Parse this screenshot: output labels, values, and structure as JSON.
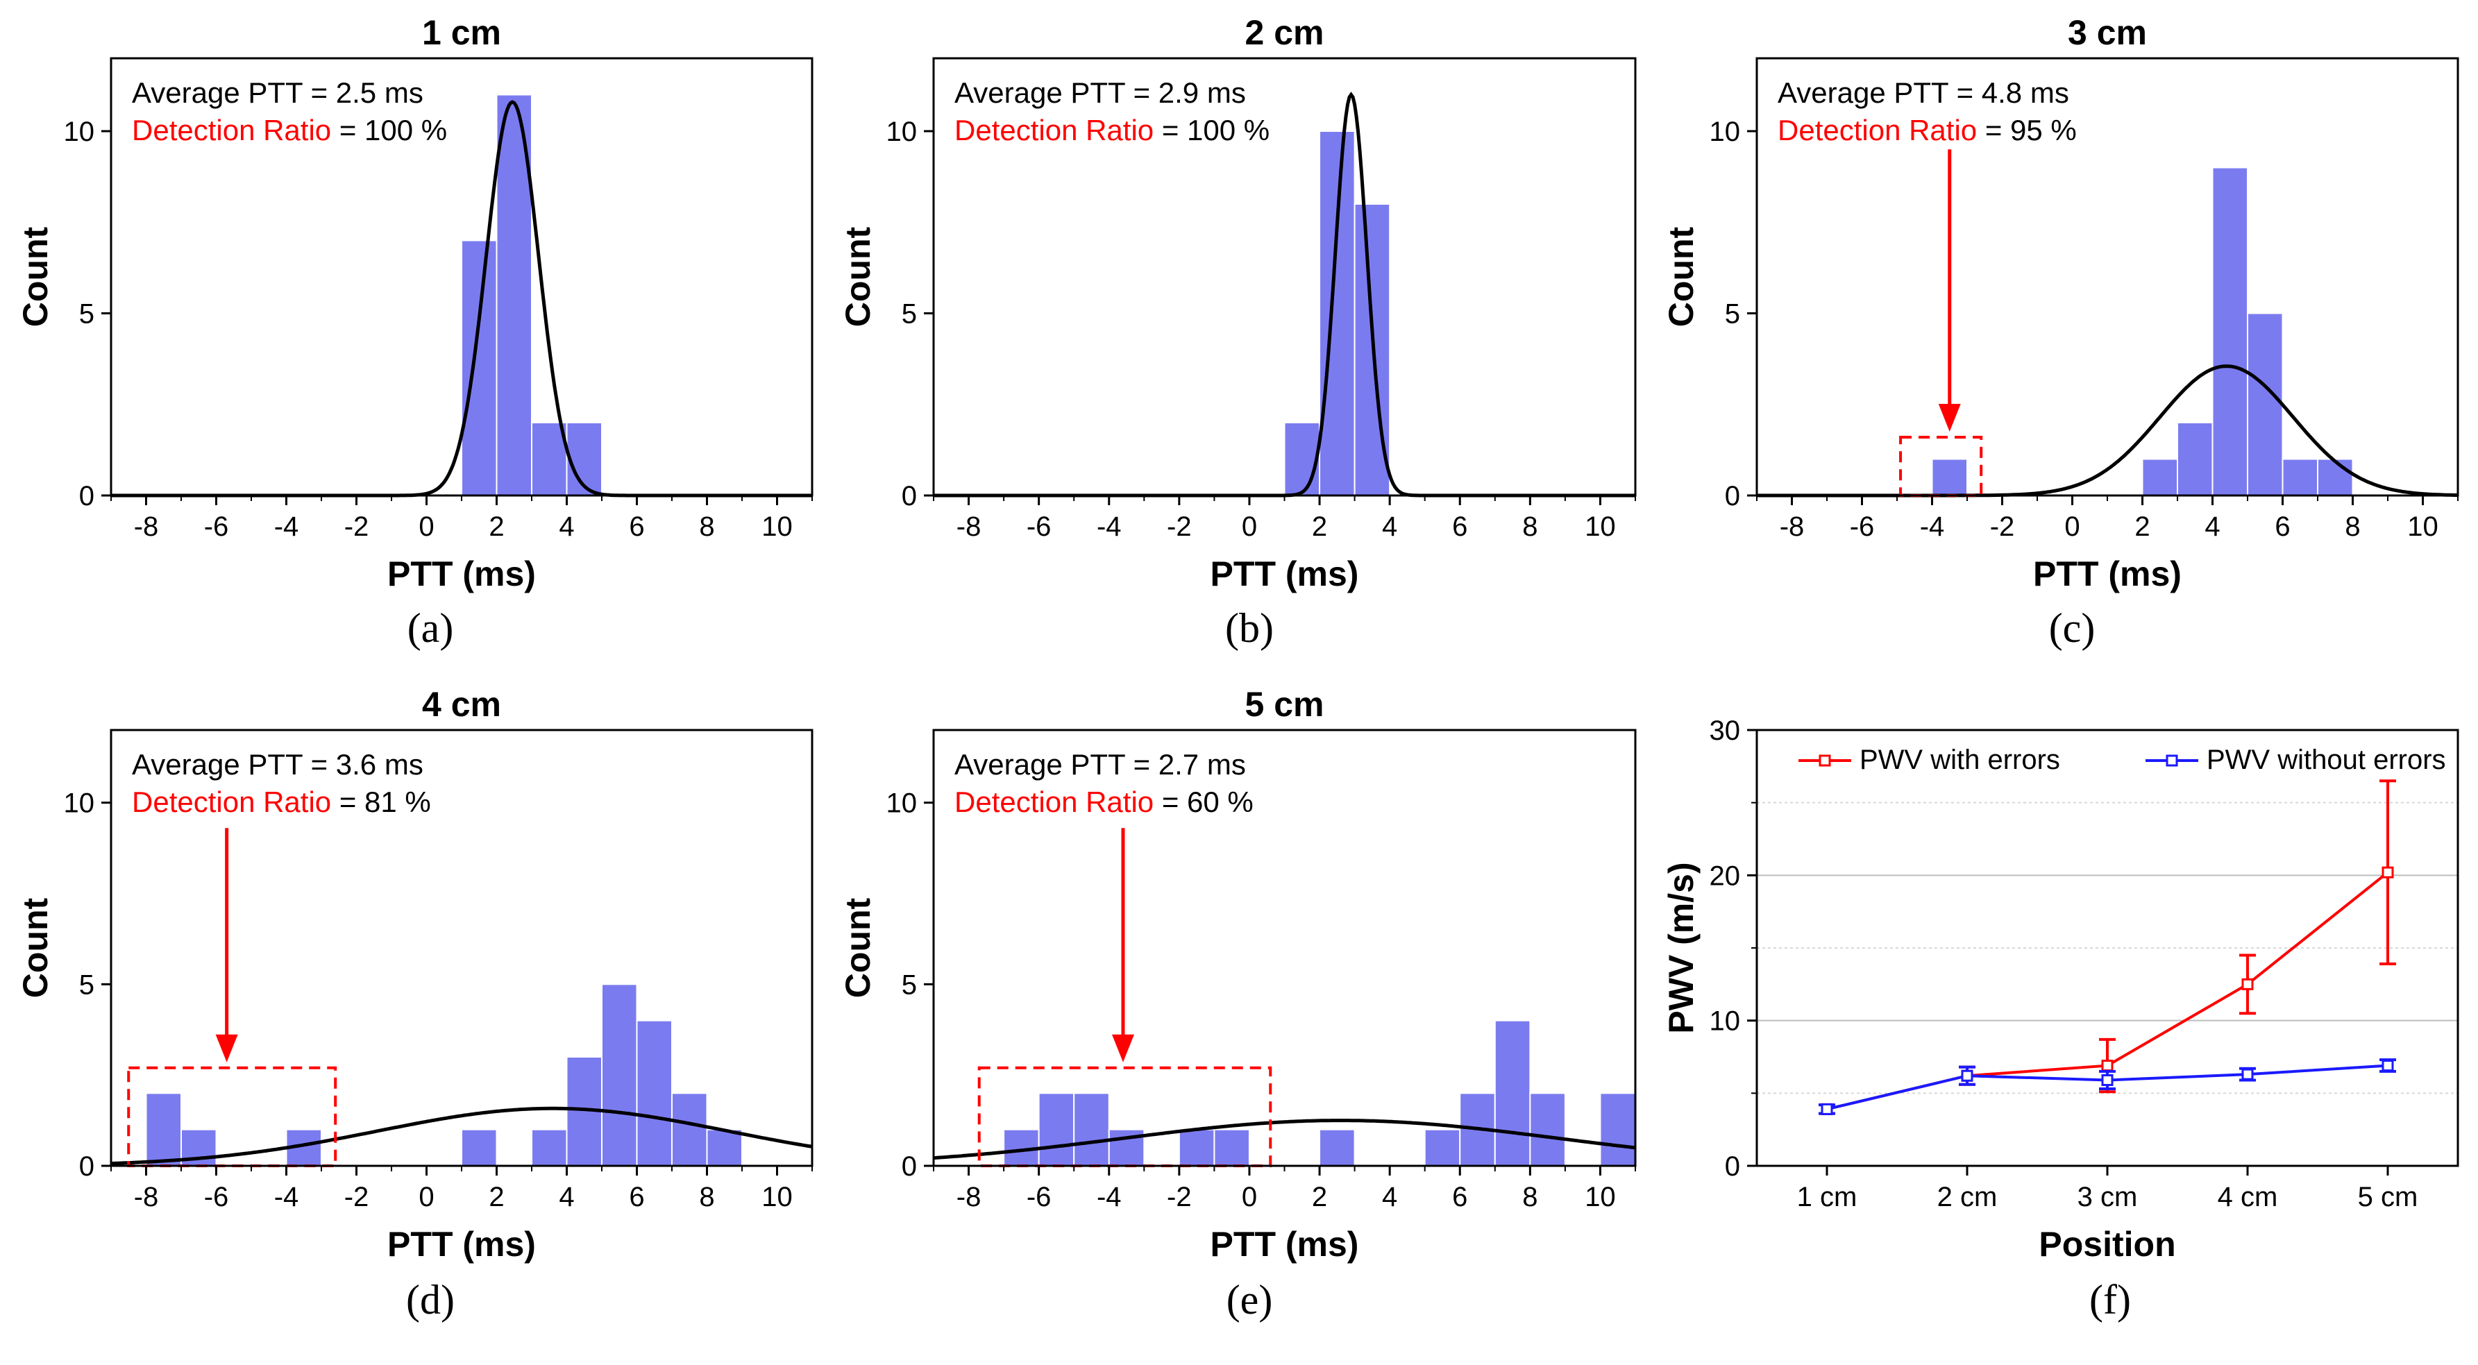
{
  "figure": {
    "colors": {
      "bar": "#7b7bf0",
      "bar_edge": "#ffffff",
      "fit": "#000000",
      "highlight": "#ff0000",
      "series_red": "#ff0000",
      "series_blue": "#1a1aff"
    }
  },
  "chart_data": [
    {
      "type": "bar",
      "panel": "(a)",
      "title": "1 cm",
      "xlabel": "PTT (ms)",
      "ylabel": "Count",
      "xlim": [
        -9,
        11
      ],
      "ylim": [
        0,
        12
      ],
      "xticks": [
        "-8",
        "-6",
        "-4",
        "-2",
        "0",
        "2",
        "4",
        "6",
        "8",
        "10"
      ],
      "yticks": [
        "0",
        "5",
        "10"
      ],
      "bin_width": 1,
      "bins": [
        {
          "x0": 1,
          "count": 7
        },
        {
          "x0": 2,
          "count": 11
        },
        {
          "x0": 3,
          "count": 2
        },
        {
          "x0": 4,
          "count": 2
        }
      ],
      "fit": {
        "mean": 2.45,
        "sd": 0.75,
        "peak": 10.8
      },
      "annotations": {
        "avg_label": "Average PTT = 2.5 ms",
        "ratio_label": "Detection Ratio",
        "ratio_value": " = 100 %"
      },
      "error_box": null
    },
    {
      "type": "bar",
      "panel": "(b)",
      "title": "2 cm",
      "xlabel": "PTT (ms)",
      "ylabel": "Count",
      "xlim": [
        -9,
        11
      ],
      "ylim": [
        0,
        12
      ],
      "xticks": [
        "-8",
        "-6",
        "-4",
        "-2",
        "0",
        "2",
        "4",
        "6",
        "8",
        "10"
      ],
      "yticks": [
        "0",
        "5",
        "10"
      ],
      "bin_width": 1,
      "bins": [
        {
          "x0": 1,
          "count": 2
        },
        {
          "x0": 2,
          "count": 10
        },
        {
          "x0": 3,
          "count": 8
        }
      ],
      "fit": {
        "mean": 2.9,
        "sd": 0.45,
        "peak": 11.0
      },
      "annotations": {
        "avg_label": "Average PTT = 2.9 ms",
        "ratio_label": "Detection Ratio",
        "ratio_value": " = 100 %"
      },
      "error_box": null
    },
    {
      "type": "bar",
      "panel": "(c)",
      "title": "3 cm",
      "xlabel": "PTT (ms)",
      "ylabel": "Count",
      "xlim": [
        -9,
        11
      ],
      "ylim": [
        0,
        12
      ],
      "xticks": [
        "-8",
        "-6",
        "-4",
        "-2",
        "0",
        "2",
        "4",
        "6",
        "8",
        "10"
      ],
      "yticks": [
        "0",
        "5",
        "10"
      ],
      "bin_width": 1,
      "bins": [
        {
          "x0": -4,
          "count": 1
        },
        {
          "x0": 2,
          "count": 1
        },
        {
          "x0": 3,
          "count": 2
        },
        {
          "x0": 4,
          "count": 9
        },
        {
          "x0": 5,
          "count": 5
        },
        {
          "x0": 6,
          "count": 1
        },
        {
          "x0": 7,
          "count": 1
        }
      ],
      "fit": {
        "mean": 4.4,
        "sd": 1.9,
        "peak": 3.55
      },
      "annotations": {
        "avg_label": "Average PTT = 4.8 ms",
        "ratio_label": "Detection Ratio",
        "ratio_value": " = 95 %"
      },
      "error_box": {
        "x0": -4.9,
        "x1": -2.6,
        "y0": 0,
        "y1": 1.6,
        "arrow_x": -3.5,
        "arrow_top": 9.5
      }
    },
    {
      "type": "bar",
      "panel": "(d)",
      "title": "4 cm",
      "xlabel": "PTT (ms)",
      "ylabel": "Count",
      "xlim": [
        -9,
        11
      ],
      "ylim": [
        0,
        12
      ],
      "xticks": [
        "-8",
        "-6",
        "-4",
        "-2",
        "0",
        "2",
        "4",
        "6",
        "8",
        "10"
      ],
      "yticks": [
        "0",
        "5",
        "10"
      ],
      "bin_width": 1,
      "bins": [
        {
          "x0": -8,
          "count": 2
        },
        {
          "x0": -7,
          "count": 1
        },
        {
          "x0": -4,
          "count": 1
        },
        {
          "x0": 1,
          "count": 1
        },
        {
          "x0": 3,
          "count": 1
        },
        {
          "x0": 4,
          "count": 3
        },
        {
          "x0": 5,
          "count": 5
        },
        {
          "x0": 6,
          "count": 4
        },
        {
          "x0": 7,
          "count": 2
        },
        {
          "x0": 8,
          "count": 1
        }
      ],
      "fit": {
        "mean": 3.6,
        "sd": 5.0,
        "peak": 1.58
      },
      "annotations": {
        "avg_label": "Average PTT = 3.6 ms",
        "ratio_label": "Detection Ratio",
        "ratio_value": " = 81 %"
      },
      "error_box": {
        "x0": -8.5,
        "x1": -2.6,
        "y0": 0,
        "y1": 2.7,
        "arrow_x": -5.7,
        "arrow_top": 9.3
      }
    },
    {
      "type": "bar",
      "panel": "(e)",
      "title": "5 cm",
      "xlabel": "PTT (ms)",
      "ylabel": "Count",
      "xlim": [
        -9,
        11
      ],
      "ylim": [
        0,
        12
      ],
      "xticks": [
        "-8",
        "-6",
        "-4",
        "-2",
        "0",
        "2",
        "4",
        "6",
        "8",
        "10"
      ],
      "yticks": [
        "0",
        "5",
        "10"
      ],
      "bin_width": 1,
      "bins": [
        {
          "x0": -7,
          "count": 1
        },
        {
          "x0": -6,
          "count": 2
        },
        {
          "x0": -5,
          "count": 2
        },
        {
          "x0": -4,
          "count": 1
        },
        {
          "x0": -2,
          "count": 1
        },
        {
          "x0": -1,
          "count": 1
        },
        {
          "x0": 2,
          "count": 1
        },
        {
          "x0": 5,
          "count": 1
        },
        {
          "x0": 6,
          "count": 2
        },
        {
          "x0": 7,
          "count": 4
        },
        {
          "x0": 8,
          "count": 2
        },
        {
          "x0": 10,
          "count": 2
        }
      ],
      "fit": {
        "mean": 2.6,
        "sd": 6.2,
        "peak": 1.25
      },
      "annotations": {
        "avg_label": "Average PTT = 2.7 ms",
        "ratio_label": "Detection Ratio",
        "ratio_value": " = 60 %"
      },
      "error_box": {
        "x0": -7.7,
        "x1": 0.6,
        "y0": 0,
        "y1": 2.7,
        "arrow_x": -3.6,
        "arrow_top": 9.3
      }
    },
    {
      "type": "line",
      "panel": "(f)",
      "title": "",
      "xlabel": "Position",
      "ylabel": "PWV (m/s)",
      "categories": [
        "1 cm",
        "2 cm",
        "3 cm",
        "4 cm",
        "5 cm"
      ],
      "ylim": [
        0,
        30
      ],
      "yticks": [
        "0",
        "10",
        "20",
        "30"
      ],
      "grid_major": [
        10,
        20
      ],
      "grid_minor": [
        5,
        15,
        25
      ],
      "series": [
        {
          "name": "PWV with errors",
          "color": "#ff0000",
          "values": [
            3.9,
            6.2,
            6.9,
            12.5,
            20.2
          ],
          "errors": [
            0.3,
            0.6,
            1.8,
            2.0,
            6.3
          ]
        },
        {
          "name": "PWV without errors",
          "color": "#1a1aff",
          "values": [
            3.9,
            6.2,
            5.9,
            6.3,
            6.9
          ],
          "errors": [
            0.3,
            0.6,
            0.6,
            0.4,
            0.4
          ]
        }
      ]
    }
  ]
}
